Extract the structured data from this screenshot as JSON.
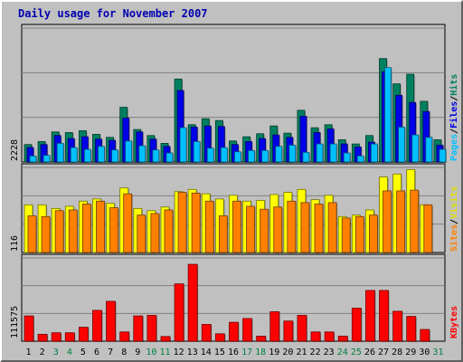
{
  "title": "Daily usage for November 2007",
  "chart_data": {
    "type": "bar",
    "title": "Daily usage for November 2007",
    "categories": [
      "1",
      "2",
      "3",
      "4",
      "5",
      "6",
      "7",
      "8",
      "9",
      "10",
      "11",
      "12",
      "13",
      "14",
      "15",
      "16",
      "17",
      "18",
      "19",
      "20",
      "21",
      "22",
      "23",
      "24",
      "25",
      "26",
      "27",
      "28",
      "29",
      "30",
      "31"
    ],
    "weekend_days": [
      "3",
      "4",
      "10",
      "11",
      "17",
      "18",
      "24",
      "25",
      "31"
    ],
    "colors": {
      "pages": "#00c0ff",
      "files": "#0000e6",
      "hits": "#008060",
      "sites": "#ff8000",
      "visits": "#ffff00",
      "kbytes": "#ff0000",
      "day_label": "#000000",
      "weekend_label": "#008040"
    },
    "panels": [
      {
        "name": "hits-files-pages",
        "ymax_label": "2228",
        "ylim": [
          0,
          2228
        ],
        "grid": true,
        "legend": [
          "Pages",
          "Files",
          "Hits"
        ],
        "series": [
          {
            "name": "Hits",
            "values": [
              290,
              340,
              500,
              490,
              520,
              460,
              410,
              910,
              540,
              440,
              310,
              1380,
              620,
              720,
              690,
              350,
              420,
              470,
              600,
              480,
              860,
              570,
              620,
              370,
              300,
              440,
              1720,
              1300,
              1460,
              1010,
              370
            ]
          },
          {
            "name": "Files",
            "values": [
              240,
              290,
              440,
              390,
              420,
              380,
              360,
              730,
              500,
              380,
              260,
              1190,
              580,
              600,
              590,
              290,
              340,
              390,
              450,
              410,
              760,
              490,
              550,
              300,
              250,
              330,
              1500,
              1110,
              990,
              840,
              280
            ]
          },
          {
            "name": "Pages",
            "values": [
              100,
              110,
              310,
              240,
              210,
              260,
              200,
              350,
              270,
              200,
              150,
              570,
              340,
              230,
              240,
              170,
              190,
              190,
              260,
              280,
              160,
              300,
              300,
              150,
              100,
              300,
              1570,
              580,
              450,
              410,
              210
            ]
          }
        ]
      },
      {
        "name": "visits-sites",
        "ymax_label": "116",
        "ylim": [
          0,
          116
        ],
        "grid": true,
        "legend": [
          "Sites",
          "Visits"
        ],
        "series": [
          {
            "name": "Visits",
            "values": [
              65,
              65,
              60,
              63,
              70,
              73,
              67,
              88,
              60,
              57,
              62,
              83,
              86,
              80,
              73,
              78,
              70,
              71,
              79,
              82,
              86,
              72,
              78,
              49,
              51,
              58,
              103,
              107,
              113,
              65,
              null
            ]
          },
          {
            "name": "Sites",
            "values": [
              50,
              49,
              57,
              58,
              66,
              70,
              61,
              80,
              51,
              53,
              58,
              82,
              81,
              70,
              50,
              70,
              63,
              59,
              62,
              70,
              68,
              66,
              68,
              47,
              49,
              51,
              84,
              84,
              85,
              65,
              null
            ]
          }
        ]
      },
      {
        "name": "kbytes",
        "ymax_label": "111575",
        "ylim": [
          0,
          111575
        ],
        "grid": true,
        "legend": [
          "KBytes"
        ],
        "series": [
          {
            "name": "KBytes",
            "values": [
              33900,
              9200,
              11300,
              11300,
              18700,
              41300,
              53400,
              12400,
              33900,
              34600,
              6300,
              76800,
              103000,
              22500,
              9900,
              25300,
              30400,
              6800,
              39500,
              27000,
              34600,
              12400,
              12400,
              6800,
              44300,
              68000,
              68000,
              40100,
              33200,
              15700,
              null
            ]
          }
        ]
      }
    ]
  }
}
